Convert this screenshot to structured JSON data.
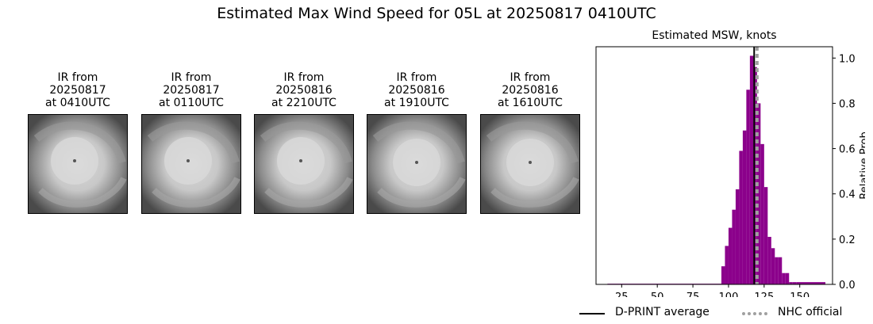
{
  "title": "Estimated Max Wind Speed for 05L at 20250817 0410UTC",
  "ir_panels": [
    {
      "line1": "IR from",
      "line2": "20250817",
      "line3": "at 0410UTC"
    },
    {
      "line1": "IR from",
      "line2": "20250817",
      "line3": "at 0110UTC"
    },
    {
      "line1": "IR from",
      "line2": "20250816",
      "line3": "at 2210UTC"
    },
    {
      "line1": "IR from",
      "line2": "20250816",
      "line3": "at 1910UTC"
    },
    {
      "line1": "IR from",
      "line2": "20250816",
      "line3": "at 1610UTC"
    }
  ],
  "chart_data": {
    "type": "bar",
    "title": "Estimated MSW, knots",
    "xlabel": "",
    "ylabel": "Relative Prob",
    "xlim": [
      7,
      173
    ],
    "ylim": [
      0,
      1.05
    ],
    "x_ticks": [
      25,
      50,
      75,
      100,
      125,
      150
    ],
    "y_ticks": [
      0.0,
      0.2,
      0.4,
      0.6,
      0.8,
      1.0
    ],
    "y_tick_labels": [
      "0.0",
      "0.2",
      "0.4",
      "0.6",
      "0.8",
      "1.0"
    ],
    "y_axis_side": "right",
    "bar_color": "#8b008b",
    "bin_width": 2.5,
    "bins": [
      {
        "x0": 15,
        "x1": 95,
        "value": 0.003
      },
      {
        "x0": 95,
        "x1": 97.5,
        "value": 0.08
      },
      {
        "x0": 97.5,
        "x1": 100,
        "value": 0.17
      },
      {
        "x0": 100,
        "x1": 102.5,
        "value": 0.25
      },
      {
        "x0": 102.5,
        "x1": 105,
        "value": 0.33
      },
      {
        "x0": 105,
        "x1": 107.5,
        "value": 0.42
      },
      {
        "x0": 107.5,
        "x1": 110,
        "value": 0.59
      },
      {
        "x0": 110,
        "x1": 112.5,
        "value": 0.68
      },
      {
        "x0": 112.5,
        "x1": 115,
        "value": 0.86
      },
      {
        "x0": 115,
        "x1": 117.5,
        "value": 1.01
      },
      {
        "x0": 117.5,
        "x1": 120,
        "value": 0.96
      },
      {
        "x0": 120,
        "x1": 122.5,
        "value": 0.8
      },
      {
        "x0": 122.5,
        "x1": 125,
        "value": 0.62
      },
      {
        "x0": 125,
        "x1": 127.5,
        "value": 0.43
      },
      {
        "x0": 127.5,
        "x1": 130,
        "value": 0.21
      },
      {
        "x0": 130,
        "x1": 132.5,
        "value": 0.16
      },
      {
        "x0": 132.5,
        "x1": 135,
        "value": 0.12
      },
      {
        "x0": 135,
        "x1": 137.5,
        "value": 0.12
      },
      {
        "x0": 137.5,
        "x1": 140,
        "value": 0.05
      },
      {
        "x0": 140,
        "x1": 142.5,
        "value": 0.05
      },
      {
        "x0": 142.5,
        "x1": 145,
        "value": 0.01
      },
      {
        "x0": 145,
        "x1": 147.5,
        "value": 0.01
      },
      {
        "x0": 147.5,
        "x1": 168,
        "value": 0.01
      }
    ],
    "reference_lines": [
      {
        "name": "D-PRINT average",
        "x": 118,
        "color": "#000000",
        "style": "solid"
      },
      {
        "name": "NHC official",
        "x": 120,
        "color": "#a0a0a0",
        "style": "dotted"
      }
    ],
    "legend_position": "bottom-right"
  }
}
